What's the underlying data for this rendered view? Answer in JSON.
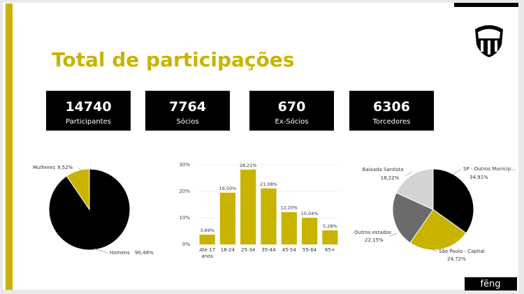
{
  "header": {
    "title": "Total de participações"
  },
  "kpis": [
    {
      "value": 14740,
      "label": "Participantes"
    },
    {
      "value": 7764,
      "label": "Sócios"
    },
    {
      "value": 670,
      "label": "Ex-Sócios"
    },
    {
      "value": 6306,
      "label": "Torcedores"
    }
  ],
  "footer": {
    "brand": "fēng"
  },
  "chart_data": [
    {
      "type": "pie",
      "categories": [
        "Homens",
        "Mulheres"
      ],
      "values": [
        90.48,
        9.52
      ],
      "value_labels": [
        "90,48%",
        "9,52%"
      ],
      "colors": [
        "#000000",
        "#c8b400"
      ]
    },
    {
      "type": "bar",
      "categories": [
        "Até 17 anos",
        "18-24",
        "25-34",
        "35-44",
        "45-54",
        "55-64",
        "65+"
      ],
      "values": [
        3.69,
        19.5,
        28.21,
        21.08,
        12.2,
        10.04,
        5.28
      ],
      "value_labels": [
        "3,69%",
        "19,50%",
        "28,21%",
        "21,08%",
        "12,20%",
        "10,04%",
        "5,28%"
      ],
      "color": "#c8b400",
      "ylim": [
        0,
        30
      ],
      "yticks": [
        {
          "value": 0,
          "label": "0%"
        },
        {
          "value": 10,
          "label": "10%"
        },
        {
          "value": 20,
          "label": "20%"
        },
        {
          "value": 30,
          "label": "30%"
        }
      ],
      "grid": true
    },
    {
      "type": "pie",
      "categories": [
        "SP - Outros Municip...",
        "São Paulo - Capital",
        "Outros estados",
        "Baixada Santista"
      ],
      "values": [
        34.91,
        24.72,
        22.15,
        18.22
      ],
      "value_labels": [
        "34,91%",
        "24,72%",
        "22,15%",
        "18,22%"
      ],
      "colors": [
        "#000000",
        "#c8b400",
        "#6b6b6b",
        "#d3d3d3"
      ]
    }
  ]
}
